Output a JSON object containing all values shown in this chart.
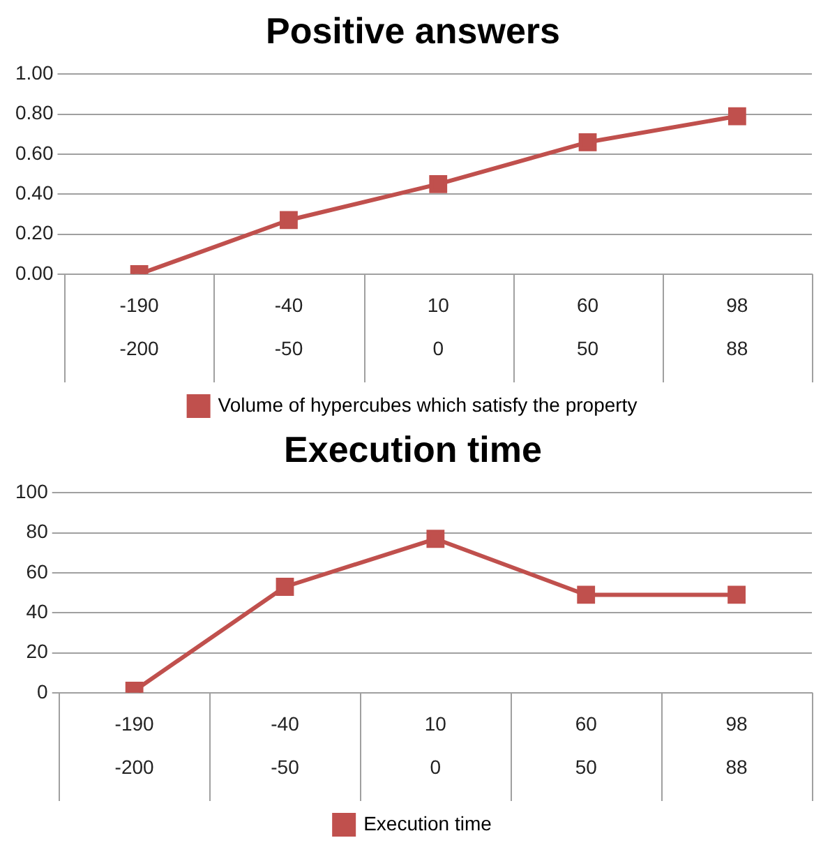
{
  "chart_data": [
    {
      "type": "line",
      "title": "Positive answers",
      "categories": [
        "-190\n-200",
        "-40\n-50",
        "10\n0",
        "60\n50",
        "98\n88"
      ],
      "series": [
        {
          "name": "Volume of hypercubes which satisfy the property",
          "color": "#c0504d",
          "values": [
            0,
            0.27,
            0.45,
            0.66,
            0.79
          ]
        }
      ],
      "ylim": [
        0,
        1
      ],
      "yticks": [
        {
          "value": 0,
          "label": "0.00"
        },
        {
          "value": 0.2,
          "label": "0.20"
        },
        {
          "value": 0.4,
          "label": "0.40"
        },
        {
          "value": 0.6,
          "label": "0.60"
        },
        {
          "value": 0.8,
          "label": "0.80"
        },
        {
          "value": 1,
          "label": "1.00"
        }
      ],
      "grid": "y",
      "legend": "bottom",
      "marker": "square",
      "line_style": "solid"
    },
    {
      "type": "line",
      "title": "Execution time",
      "categories": [
        "-190\n-200",
        "-40\n-50",
        "10\n0",
        "60\n50",
        "98\n88"
      ],
      "series": [
        {
          "name": "Execution time",
          "color": "#c0504d",
          "values": [
            1,
            53,
            77,
            49,
            49
          ]
        }
      ],
      "ylim": [
        0,
        100
      ],
      "yticks": [
        0,
        20,
        40,
        60,
        80,
        100
      ],
      "grid": "y",
      "legend": "bottom",
      "marker": "square",
      "line_style": "solid"
    }
  ]
}
